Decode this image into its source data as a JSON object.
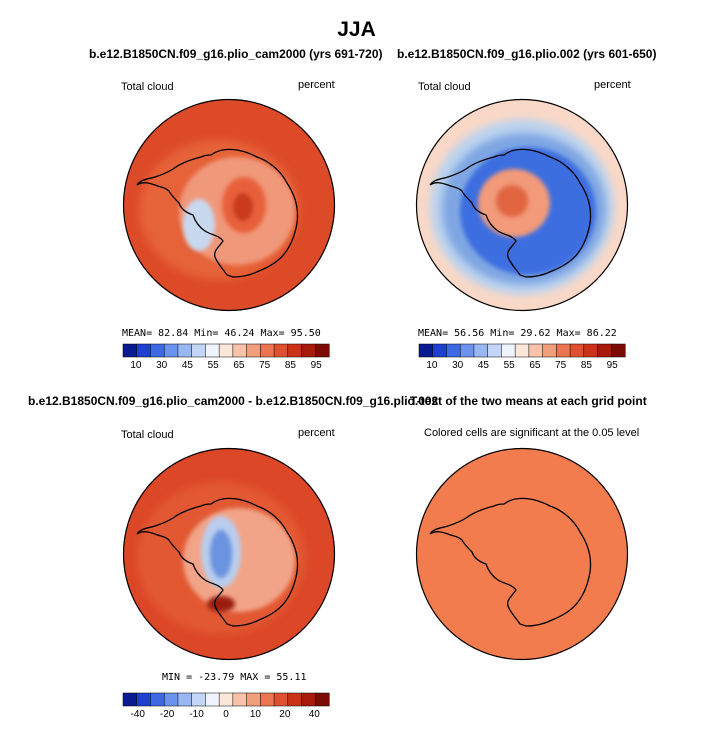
{
  "page": {
    "title": "JJA"
  },
  "panels": [
    {
      "title": "b.e12.B1850CN.f09_g16.plio_cam2000 (yrs 691-720)",
      "left_label": "Total cloud",
      "right_label": "percent",
      "stats": {
        "mean_label": "MEAN=",
        "mean": "82.84",
        "min_label": "Min=",
        "min": "46.24",
        "max_label": "Max=",
        "max": "95.50"
      },
      "colors": {
        "ocean": "#dd4a28",
        "coast_ring": "#e66238",
        "land": "#f0987a",
        "interior": "#e8603b",
        "highlight": "#c93a1c",
        "cool": "#c8d8ef"
      }
    },
    {
      "title": "b.e12.B1850CN.f09_g16.plio.002 (yrs 601-650)",
      "left_label": "Total cloud",
      "right_label": "percent",
      "stats": {
        "mean_label": "MEAN=",
        "mean": "56.56",
        "min_label": "Min=",
        "min": "29.62",
        "max_label": "Max=",
        "max": "86.22"
      },
      "colors": {
        "ocean": "#f9d8c7",
        "ring_outer": "#bcd3ee",
        "ring_mid": "#7ea6e3",
        "ring_inner": "#3d6ee0",
        "interior": "#f29a79",
        "highlight": "#e0653f"
      }
    },
    {
      "title": "b.e12.B1850CN.f09_g16.plio_cam2000 - b.e12.B1850CN.f09_g16.plio.002",
      "left_label": "Total cloud",
      "right_label": "percent",
      "stats_text": "MIN = -23.79  MAX =  55.11",
      "colors": {
        "ocean": "#dc4727",
        "coast_ring": "#e25833",
        "land": "#f2a488",
        "blue_core": "#6b93e0",
        "blue_edge": "#b9cdee",
        "dark": "#9b1a0c"
      }
    },
    {
      "title": "T-test of the two means at each grid point",
      "subtitle": "Colored cells are significant at the 0.05 level",
      "colors": {
        "fill": "#f27c4e"
      }
    }
  ],
  "colorbar_abs": {
    "colors": [
      "#0a1b8f",
      "#1f3fcf",
      "#3e68e6",
      "#6b92ec",
      "#98b6f2",
      "#c4d6f7",
      "#eef3fc",
      "#fbe6da",
      "#f6c2a8",
      "#f19e7b",
      "#ea7550",
      "#de5030",
      "#cc3217",
      "#a81a0b",
      "#7d0a05"
    ],
    "ticks": [
      "10",
      "30",
      "45",
      "55",
      "65",
      "75",
      "85",
      "95"
    ]
  },
  "colorbar_diff": {
    "colors": [
      "#0a1b8f",
      "#1f3fcf",
      "#3e68e6",
      "#6b92ec",
      "#98b6f2",
      "#c4d6f7",
      "#eef3fc",
      "#fbe6da",
      "#f6c2a8",
      "#f19e7b",
      "#ea7550",
      "#de5030",
      "#cc3217",
      "#a81a0b",
      "#7d0a05"
    ],
    "ticks": [
      "-40",
      "-20",
      "-10",
      "0",
      "10",
      "20",
      "40"
    ]
  },
  "chart_data": [
    {
      "type": "heatmap",
      "title": "b.e12.B1850CN.f09_g16.plio_cam2000 (yrs 691-720)",
      "variable": "Total cloud",
      "units": "percent",
      "mean": 82.84,
      "min": 46.24,
      "max": 95.5,
      "levels": [
        10,
        30,
        45,
        55,
        65,
        75,
        85,
        95
      ]
    },
    {
      "type": "heatmap",
      "title": "b.e12.B1850CN.f09_g16.plio.002 (yrs 601-650)",
      "variable": "Total cloud",
      "units": "percent",
      "mean": 56.56,
      "min": 29.62,
      "max": 86.22,
      "levels": [
        10,
        30,
        45,
        55,
        65,
        75,
        85,
        95
      ]
    },
    {
      "type": "heatmap",
      "title": "b.e12.B1850CN.f09_g16.plio_cam2000 - b.e12.B1850CN.f09_g16.plio.002",
      "variable": "Total cloud",
      "units": "percent",
      "min": -23.79,
      "max": 55.11,
      "levels": [
        -40,
        -20,
        -10,
        0,
        10,
        20,
        40
      ]
    },
    {
      "type": "heatmap",
      "title": "T-test of the two means at each grid point",
      "note": "Colored cells are significant at the 0.05 level"
    }
  ]
}
